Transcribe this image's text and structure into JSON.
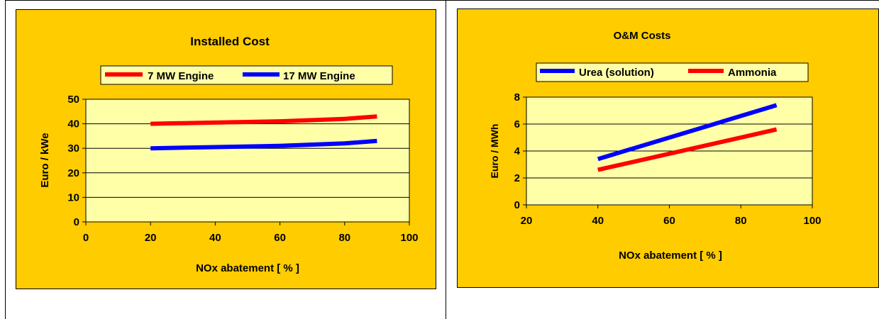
{
  "colors": {
    "panel_bg": "#FFCC00",
    "plot_bg": "#FFFFA8",
    "red": "#FF0000",
    "blue": "#0000FF"
  },
  "chart_data": [
    {
      "type": "line",
      "title": "Installed Cost",
      "xlabel": "NOx abatement [ % ]",
      "ylabel": "Euro / kWe",
      "xlim": [
        0,
        100
      ],
      "ylim": [
        0,
        50
      ],
      "xticks": [
        "0",
        "20",
        "40",
        "60",
        "80",
        "100"
      ],
      "yticks": [
        "0",
        "10",
        "20",
        "30",
        "40",
        "50"
      ],
      "grid": true,
      "legend": "top",
      "series": [
        {
          "name": "7 MW Engine",
          "color": "#FF0000",
          "x": [
            20,
            40,
            60,
            80,
            90
          ],
          "y": [
            40,
            40.5,
            41,
            42,
            43
          ]
        },
        {
          "name": "17 MW Engine",
          "color": "#0000FF",
          "x": [
            20,
            40,
            60,
            80,
            90
          ],
          "y": [
            30,
            30.5,
            31,
            32,
            33
          ]
        }
      ]
    },
    {
      "type": "line",
      "title": "O&M Costs",
      "xlabel": "NOx abatement [ % ]",
      "ylabel": "Euro / MWh",
      "xlim": [
        20,
        100
      ],
      "ylim": [
        0,
        8
      ],
      "xticks": [
        "20",
        "40",
        "60",
        "80",
        "100"
      ],
      "yticks": [
        "0",
        "2",
        "4",
        "6",
        "8"
      ],
      "grid": true,
      "legend": "top",
      "series": [
        {
          "name": "Urea (solution)",
          "color": "#0000FF",
          "x": [
            40,
            90
          ],
          "y": [
            3.4,
            7.4
          ]
        },
        {
          "name": "Ammonia",
          "color": "#FF0000",
          "x": [
            40,
            90
          ],
          "y": [
            2.6,
            5.6
          ]
        }
      ]
    }
  ]
}
